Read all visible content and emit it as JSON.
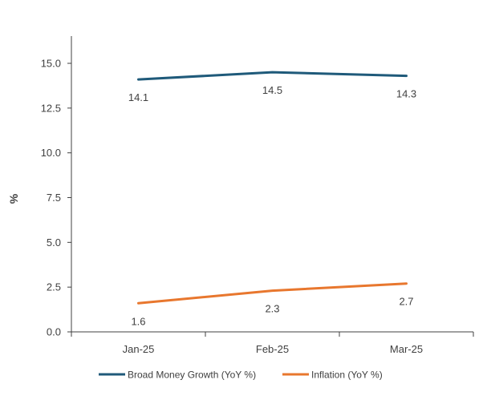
{
  "chart_data": {
    "type": "line",
    "title": "",
    "xlabel": "",
    "ylabel": "%",
    "categories": [
      "Jan-25",
      "Feb-25",
      "Mar-25"
    ],
    "ylim": [
      0,
      15
    ],
    "yticks": [
      "0.0",
      "2.5",
      "5.0",
      "7.5",
      "10.0",
      "12.5",
      "15.0"
    ],
    "grid": false,
    "legend_position": "bottom",
    "series": [
      {
        "name": "Broad Money Growth (YoY %)",
        "color": "#1f5a7a",
        "values": [
          14.1,
          14.5,
          14.3
        ],
        "labels": [
          "14.1",
          "14.5",
          "14.3"
        ],
        "label_position": "below"
      },
      {
        "name": "Inflation (YoY %)",
        "color": "#e8772e",
        "values": [
          1.6,
          2.3,
          2.7
        ],
        "labels": [
          "1.6",
          "2.3",
          "2.7"
        ],
        "label_position": "below"
      }
    ]
  }
}
